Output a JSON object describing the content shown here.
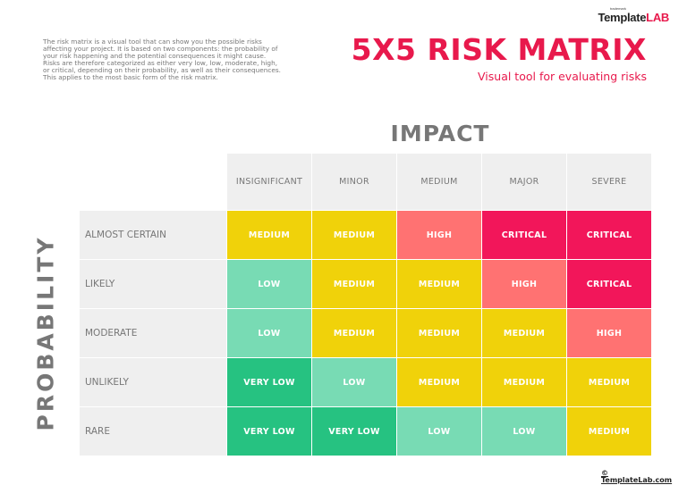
{
  "logo": {
    "small": "trademark",
    "brand_part1": "Template",
    "brand_part2": "LAB"
  },
  "description": "The risk matrix is a visual tool that can show you the possible risks affecting your project. It is based on two components: the probability of your risk happening and the potential consequences it might cause. Risks are therefore categorized as either very low, low, moderate, high, or critical, depending on their probability, as well as their consequences. This applies to the most basic form of the risk matrix.",
  "title": "5X5 RISK MATRIX",
  "subtitle": "Visual tool for evaluating risks",
  "impact_label": "IMPACT",
  "probability_label": "PROBABILITY",
  "columns": [
    "INSIGNIFICANT",
    "MINOR",
    "MEDIUM",
    "MAJOR",
    "SEVERE"
  ],
  "rows": [
    {
      "label": "ALMOST CERTAIN",
      "cells": [
        {
          "text": "MEDIUM",
          "level": "medium"
        },
        {
          "text": "MEDIUM",
          "level": "medium"
        },
        {
          "text": "HIGH",
          "level": "high"
        },
        {
          "text": "CRITICAL",
          "level": "critical"
        },
        {
          "text": "CRITICAL",
          "level": "critical"
        }
      ]
    },
    {
      "label": "LIKELY",
      "cells": [
        {
          "text": "LOW",
          "level": "low"
        },
        {
          "text": "MEDIUM",
          "level": "medium"
        },
        {
          "text": "MEDIUM",
          "level": "medium"
        },
        {
          "text": "HIGH",
          "level": "high"
        },
        {
          "text": "CRITICAL",
          "level": "critical"
        }
      ]
    },
    {
      "label": "MODERATE",
      "cells": [
        {
          "text": "LOW",
          "level": "low"
        },
        {
          "text": "MEDIUM",
          "level": "medium"
        },
        {
          "text": "MEDIUM",
          "level": "medium"
        },
        {
          "text": "MEDIUM",
          "level": "medium"
        },
        {
          "text": "HIGH",
          "level": "high"
        }
      ]
    },
    {
      "label": "UNLIKELY",
      "cells": [
        {
          "text": "VERY LOW",
          "level": "very-low"
        },
        {
          "text": "LOW",
          "level": "low"
        },
        {
          "text": "MEDIUM",
          "level": "medium"
        },
        {
          "text": "MEDIUM",
          "level": "medium"
        },
        {
          "text": "MEDIUM",
          "level": "medium"
        }
      ]
    },
    {
      "label": "RARE",
      "cells": [
        {
          "text": "VERY LOW",
          "level": "very-low"
        },
        {
          "text": "VERY LOW",
          "level": "very-low"
        },
        {
          "text": "LOW",
          "level": "low"
        },
        {
          "text": "LOW",
          "level": "low"
        },
        {
          "text": "MEDIUM",
          "level": "medium"
        }
      ]
    }
  ],
  "colors": {
    "accent": "#e8194c",
    "very-low": "#26c281",
    "low": "#78dbb4",
    "medium": "#f0d20a",
    "high": "#ff7272",
    "critical": "#f2165a"
  },
  "footer": "© TemplateLab.com"
}
